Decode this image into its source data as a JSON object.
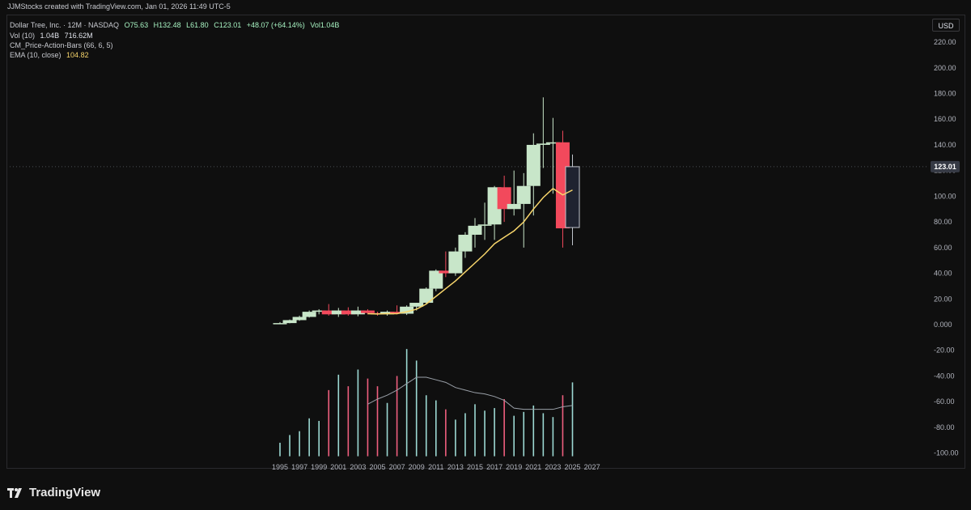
{
  "header": {
    "attribution": "JJMStocks created with TradingView.com, Jan 01, 2026 11:49 UTC-5"
  },
  "legend": {
    "symbol": "Dollar Tree, Inc. · 12M · NASDAQ",
    "open": "O75.63",
    "high": "H132.48",
    "low": "L61.80",
    "close": "C123.01",
    "change": "+48.07 (+64.14%)",
    "volume": "Vol1.04B",
    "vol_label": "Vol (10)",
    "vol_value": "1.04B",
    "vol_ma": "716.62M",
    "cm_label": "CM_Price-Action-Bars (66, 6, 5)",
    "ema_label": "EMA (10, close)",
    "ema_value": "104.82"
  },
  "currency_button": "USD",
  "last_price_tag": "123.01",
  "footer": {
    "logo_text": "TradingView"
  },
  "colors": {
    "bull": "#c8e6c9",
    "bear": "#f2495c",
    "neutral_body": "#1f2330",
    "ema": "#f7d56b",
    "vol_bull": "#9cd9d3",
    "vol_bear": "#ef5f7e",
    "vol_ma": "#9aa0a8"
  },
  "chart_data": {
    "type": "candlestick",
    "timeframe": "12M",
    "y_ticks": [
      "220.00",
      "200.00",
      "180.00",
      "160.00",
      "140.00",
      "120.00",
      "100.00",
      "80.00",
      "60.00",
      "40.00",
      "20.00",
      "0.000",
      "-20.00",
      "-40.00",
      "-60.00",
      "-80.00",
      "-100.00"
    ],
    "x_ticks": [
      "1995",
      "1997",
      "1999",
      "2001",
      "2003",
      "2005",
      "2007",
      "2009",
      "2011",
      "2013",
      "2015",
      "2017",
      "2019",
      "2021",
      "2023",
      "2025",
      "2027"
    ],
    "ylim": [
      -100,
      220
    ],
    "candles": [
      {
        "year": 1995,
        "o": 0.5,
        "h": 2,
        "l": 0.3,
        "c": 1.2,
        "dir": "bull"
      },
      {
        "year": 1996,
        "o": 1.2,
        "h": 4,
        "l": 1,
        "c": 3.5,
        "dir": "bull"
      },
      {
        "year": 1997,
        "o": 3.5,
        "h": 7,
        "l": 3,
        "c": 6,
        "dir": "bull"
      },
      {
        "year": 1998,
        "o": 6,
        "h": 11,
        "l": 5.5,
        "c": 10,
        "dir": "bull"
      },
      {
        "year": 1999,
        "o": 10,
        "h": 12,
        "l": 8,
        "c": 11,
        "dir": "bull"
      },
      {
        "year": 2000,
        "o": 11,
        "h": 16,
        "l": 7,
        "c": 8,
        "dir": "bear"
      },
      {
        "year": 2001,
        "o": 8,
        "h": 13,
        "l": 6,
        "c": 11,
        "dir": "bull"
      },
      {
        "year": 2002,
        "o": 11,
        "h": 13.5,
        "l": 7,
        "c": 8,
        "dir": "bear"
      },
      {
        "year": 2003,
        "o": 8,
        "h": 14,
        "l": 6.5,
        "c": 11,
        "dir": "bull"
      },
      {
        "year": 2004,
        "o": 11,
        "h": 12,
        "l": 8,
        "c": 9,
        "dir": "bear"
      },
      {
        "year": 2005,
        "o": 9,
        "h": 10,
        "l": 7,
        "c": 8,
        "dir": "bear"
      },
      {
        "year": 2006,
        "o": 8,
        "h": 11,
        "l": 7,
        "c": 10,
        "dir": "bull"
      },
      {
        "year": 2007,
        "o": 10,
        "h": 15,
        "l": 8,
        "c": 8.5,
        "dir": "bear"
      },
      {
        "year": 2008,
        "o": 8.5,
        "h": 15,
        "l": 7.5,
        "c": 14,
        "dir": "bull"
      },
      {
        "year": 2009,
        "o": 14,
        "h": 17,
        "l": 11,
        "c": 17,
        "dir": "bull"
      },
      {
        "year": 2010,
        "o": 17,
        "h": 29,
        "l": 16,
        "c": 28,
        "dir": "bull"
      },
      {
        "year": 2011,
        "o": 28,
        "h": 43,
        "l": 26,
        "c": 42,
        "dir": "bull"
      },
      {
        "year": 2012,
        "o": 42,
        "h": 57,
        "l": 37,
        "c": 40,
        "dir": "bear"
      },
      {
        "year": 2013,
        "o": 40,
        "h": 60,
        "l": 38,
        "c": 57,
        "dir": "bull"
      },
      {
        "year": 2014,
        "o": 57,
        "h": 72,
        "l": 52,
        "c": 70,
        "dir": "bull"
      },
      {
        "year": 2015,
        "o": 70,
        "h": 83,
        "l": 60,
        "c": 77,
        "dir": "bull"
      },
      {
        "year": 2016,
        "o": 77,
        "h": 95,
        "l": 66,
        "c": 78,
        "dir": "bull"
      },
      {
        "year": 2017,
        "o": 78,
        "h": 108,
        "l": 66,
        "c": 107,
        "dir": "bull"
      },
      {
        "year": 2018,
        "o": 107,
        "h": 116,
        "l": 80,
        "c": 90,
        "dir": "bear"
      },
      {
        "year": 2019,
        "o": 90,
        "h": 120,
        "l": 85,
        "c": 94,
        "dir": "bull"
      },
      {
        "year": 2020,
        "o": 94,
        "h": 118,
        "l": 60,
        "c": 108,
        "dir": "bull"
      },
      {
        "year": 2021,
        "o": 108,
        "h": 149,
        "l": 85,
        "c": 140,
        "dir": "bull"
      },
      {
        "year": 2022,
        "o": 140,
        "h": 177,
        "l": 122,
        "c": 141,
        "dir": "bull"
      },
      {
        "year": 2023,
        "o": 141,
        "h": 161,
        "l": 102,
        "c": 142,
        "dir": "bull"
      },
      {
        "year": 2024,
        "o": 142,
        "h": 151,
        "l": 60,
        "c": 75,
        "dir": "bear"
      },
      {
        "year": 2025,
        "o": 75.63,
        "h": 132.48,
        "l": 61.8,
        "c": 123.01,
        "dir": "neutral"
      }
    ],
    "ema": [
      {
        "year": 2004,
        "v": 8.5
      },
      {
        "year": 2005,
        "v": 8.3
      },
      {
        "year": 2006,
        "v": 8.6
      },
      {
        "year": 2007,
        "v": 8.5
      },
      {
        "year": 2008,
        "v": 10
      },
      {
        "year": 2009,
        "v": 12
      },
      {
        "year": 2010,
        "v": 16
      },
      {
        "year": 2011,
        "v": 22
      },
      {
        "year": 2012,
        "v": 28
      },
      {
        "year": 2013,
        "v": 34
      },
      {
        "year": 2014,
        "v": 41
      },
      {
        "year": 2015,
        "v": 48
      },
      {
        "year": 2016,
        "v": 55
      },
      {
        "year": 2017,
        "v": 63
      },
      {
        "year": 2018,
        "v": 68
      },
      {
        "year": 2019,
        "v": 73
      },
      {
        "year": 2020,
        "v": 80
      },
      {
        "year": 2021,
        "v": 90
      },
      {
        "year": 2022,
        "v": 99
      },
      {
        "year": 2023,
        "v": 106
      },
      {
        "year": 2024,
        "v": 101
      },
      {
        "year": 2025,
        "v": 104.82
      }
    ],
    "volume_pane": {
      "base_value": -100,
      "bars": [
        {
          "year": 1995,
          "top": -92,
          "dir": "bull"
        },
        {
          "year": 1996,
          "top": -86,
          "dir": "bull"
        },
        {
          "year": 1997,
          "top": -83,
          "dir": "bull"
        },
        {
          "year": 1998,
          "top": -73,
          "dir": "bull"
        },
        {
          "year": 1999,
          "top": -75,
          "dir": "bull"
        },
        {
          "year": 2000,
          "top": -51,
          "dir": "bear"
        },
        {
          "year": 2001,
          "top": -39,
          "dir": "bull"
        },
        {
          "year": 2002,
          "top": -48,
          "dir": "bear"
        },
        {
          "year": 2003,
          "top": -35,
          "dir": "bull"
        },
        {
          "year": 2004,
          "top": -42,
          "dir": "bear"
        },
        {
          "year": 2005,
          "top": -48,
          "dir": "bear"
        },
        {
          "year": 2006,
          "top": -61,
          "dir": "bull"
        },
        {
          "year": 2007,
          "top": -40,
          "dir": "bear"
        },
        {
          "year": 2008,
          "top": -19,
          "dir": "bull"
        },
        {
          "year": 2009,
          "top": -28,
          "dir": "bull"
        },
        {
          "year": 2010,
          "top": -55,
          "dir": "bull"
        },
        {
          "year": 2011,
          "top": -59,
          "dir": "bull"
        },
        {
          "year": 2012,
          "top": -66,
          "dir": "bear"
        },
        {
          "year": 2013,
          "top": -74,
          "dir": "bull"
        },
        {
          "year": 2014,
          "top": -69,
          "dir": "bull"
        },
        {
          "year": 2015,
          "top": -62,
          "dir": "bull"
        },
        {
          "year": 2016,
          "top": -67,
          "dir": "bull"
        },
        {
          "year": 2017,
          "top": -65,
          "dir": "bull"
        },
        {
          "year": 2018,
          "top": -58,
          "dir": "bear"
        },
        {
          "year": 2019,
          "top": -71,
          "dir": "bull"
        },
        {
          "year": 2020,
          "top": -68,
          "dir": "bull"
        },
        {
          "year": 2021,
          "top": -63,
          "dir": "bull"
        },
        {
          "year": 2022,
          "top": -69,
          "dir": "bull"
        },
        {
          "year": 2023,
          "top": -72,
          "dir": "bull"
        },
        {
          "year": 2024,
          "top": -55,
          "dir": "bear"
        },
        {
          "year": 2025,
          "top": -45,
          "dir": "bull"
        }
      ],
      "ma": [
        {
          "year": 2004,
          "v": -62
        },
        {
          "year": 2005,
          "v": -58
        },
        {
          "year": 2006,
          "v": -55
        },
        {
          "year": 2007,
          "v": -51
        },
        {
          "year": 2008,
          "v": -46
        },
        {
          "year": 2009,
          "v": -41
        },
        {
          "year": 2010,
          "v": -41
        },
        {
          "year": 2011,
          "v": -43
        },
        {
          "year": 2012,
          "v": -45
        },
        {
          "year": 2013,
          "v": -49
        },
        {
          "year": 2014,
          "v": -51
        },
        {
          "year": 2015,
          "v": -53
        },
        {
          "year": 2016,
          "v": -54
        },
        {
          "year": 2017,
          "v": -56
        },
        {
          "year": 2018,
          "v": -59
        },
        {
          "year": 2019,
          "v": -65
        },
        {
          "year": 2020,
          "v": -66
        },
        {
          "year": 2021,
          "v": -66
        },
        {
          "year": 2022,
          "v": -66
        },
        {
          "year": 2023,
          "v": -66
        },
        {
          "year": 2024,
          "v": -64
        },
        {
          "year": 2025,
          "v": -63
        }
      ]
    }
  }
}
